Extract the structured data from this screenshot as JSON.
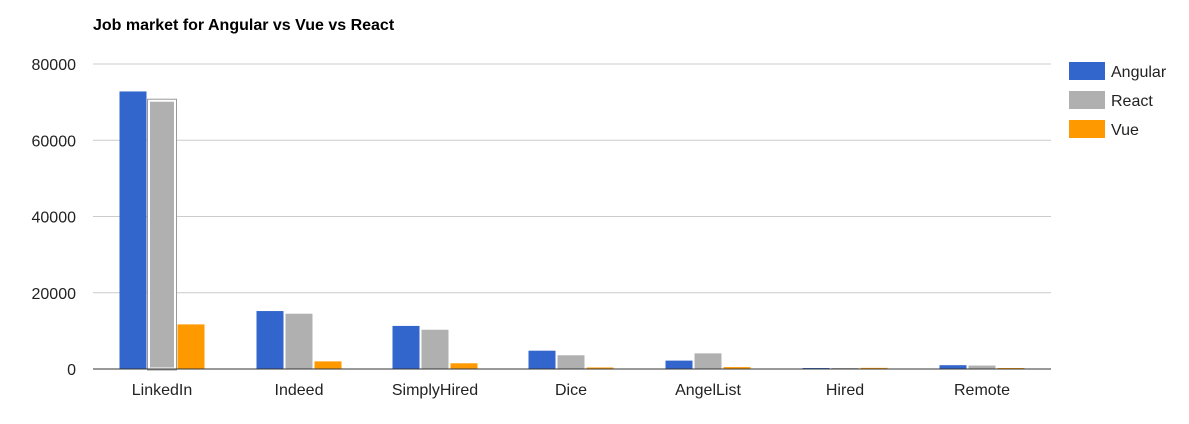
{
  "chart_data": {
    "type": "bar",
    "title": "Job market for Angular vs Vue vs React",
    "xlabel": "",
    "ylabel": "",
    "ylim": [
      0,
      80000
    ],
    "yticks": [
      0,
      20000,
      40000,
      60000,
      80000
    ],
    "ytick_labels": [
      "0",
      "20000",
      "40000",
      "60000",
      "80000"
    ],
    "grid": true,
    "legend_position": "right",
    "categories": [
      "LinkedIn",
      "Indeed",
      "SimplyHired",
      "Dice",
      "AngelList",
      "Hired",
      "Remote"
    ],
    "series": [
      {
        "name": "Angular",
        "color": "#3366cc",
        "values": [
          72800,
          15200,
          11300,
          4800,
          2200,
          150,
          1000
        ]
      },
      {
        "name": "React",
        "color": "#b0b0b0",
        "values": [
          70500,
          14500,
          10300,
          3600,
          4100,
          200,
          900
        ]
      },
      {
        "name": "Vue",
        "color": "#ff9900",
        "values": [
          11700,
          2000,
          1500,
          400,
          500,
          300,
          200
        ]
      }
    ],
    "highlighted": {
      "series": 1,
      "category": 0
    }
  }
}
